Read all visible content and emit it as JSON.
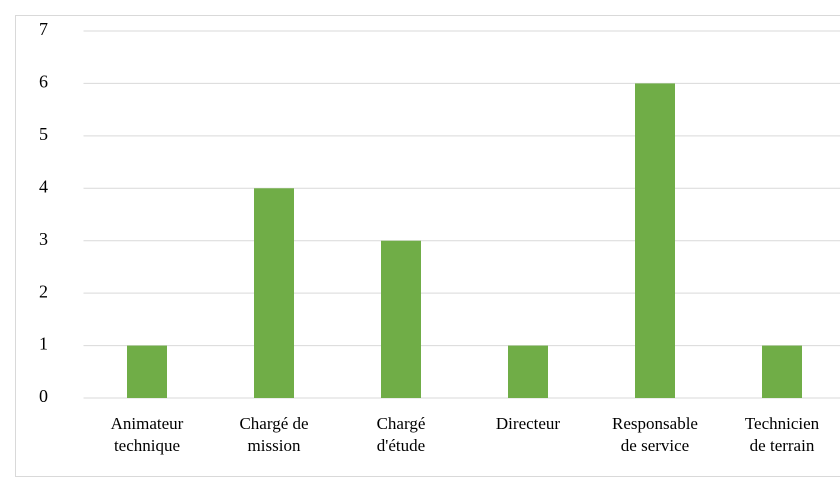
{
  "chart_data": {
    "type": "bar",
    "categories": [
      "Animateur\ntechnique",
      "Chargé de\nmission",
      "Chargé\nd'étude",
      "Directeur",
      "Responsable\nde service",
      "Technicien\nde terrain"
    ],
    "values": [
      1,
      4,
      3,
      1,
      6,
      1
    ],
    "color": "#70ad47",
    "ylim": [
      0,
      7
    ],
    "yticks": [
      0,
      1,
      2,
      3,
      4,
      5,
      6,
      7
    ],
    "grid": true
  }
}
